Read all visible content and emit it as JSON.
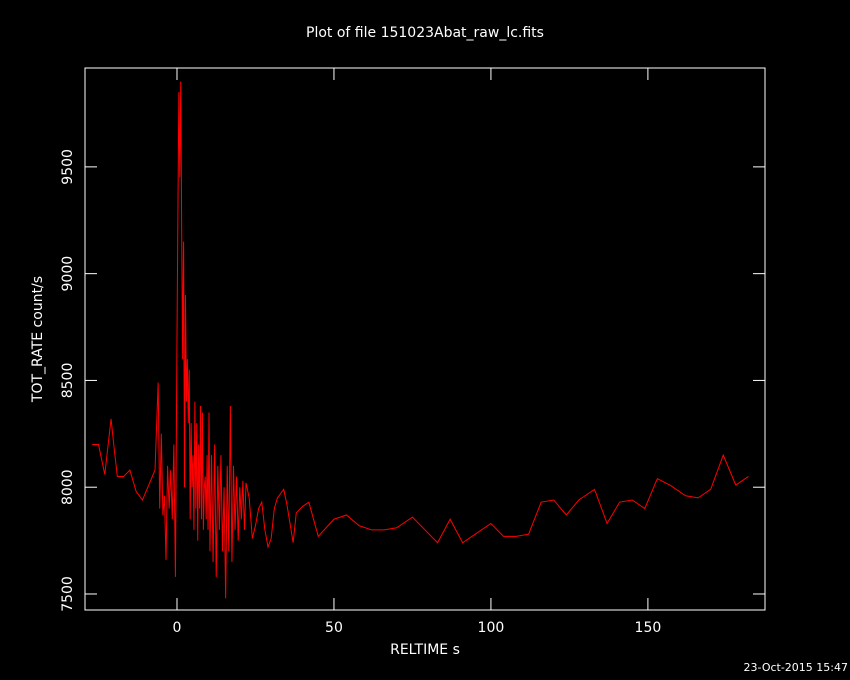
{
  "chart_data": {
    "type": "line",
    "title": "Plot of file 151023Abat_raw_lc.fits",
    "xlabel": "RELTIME  s",
    "ylabel": "TOT_RATE  count/s",
    "timestamp": "23-Oct-2015 15:47",
    "xlim": [
      -29.3,
      187.3
    ],
    "ylim": [
      7425,
      9963
    ],
    "xticks": [
      0,
      50,
      100,
      150
    ],
    "yticks": [
      7500,
      8000,
      8500,
      9000,
      9500
    ],
    "series": [
      {
        "color": "#ff0000",
        "x": [
          -27,
          -25,
          -23,
          -21,
          -20,
          -19,
          -17,
          -15,
          -13,
          -11,
          -9,
          -7,
          -6,
          -5.5,
          -5,
          -4.5,
          -4,
          -3.5,
          -3,
          -2.5,
          -2,
          -1.5,
          -1,
          -0.5,
          0,
          0.3,
          0.6,
          0.9,
          1.2,
          1.5,
          1.8,
          2.1,
          2.4,
          2.7,
          3,
          3.3,
          3.6,
          3.9,
          4.2,
          4.5,
          4.8,
          5.1,
          5.4,
          5.7,
          6,
          6.3,
          6.6,
          6.9,
          7.2,
          7.5,
          7.8,
          8.1,
          8.4,
          8.7,
          9,
          9.3,
          9.6,
          9.9,
          10.2,
          10.5,
          11,
          11.5,
          12,
          12.5,
          13,
          13.5,
          14,
          14.5,
          15,
          15.5,
          16,
          16.5,
          17,
          17.5,
          18,
          18.5,
          19,
          19.5,
          20,
          20.5,
          21,
          21.5,
          22,
          23,
          24,
          25,
          26,
          27,
          28,
          29,
          30,
          31,
          32,
          33,
          34,
          35,
          37,
          38,
          40,
          42,
          45,
          50,
          54,
          58,
          62,
          66,
          70,
          75,
          79,
          83,
          87,
          91,
          95,
          100,
          104,
          108,
          112,
          116,
          120,
          124,
          128,
          133,
          137,
          141,
          145,
          149,
          153,
          157,
          162,
          166,
          170,
          174,
          178,
          182
        ],
        "values": [
          8200,
          8200,
          8060,
          8320,
          8180,
          8050,
          8050,
          8080,
          7980,
          7940,
          8010,
          8080,
          8490,
          7900,
          8250,
          7870,
          7960,
          7660,
          8100,
          7900,
          8080,
          7850,
          8200,
          7580,
          8700,
          9300,
          9850,
          9450,
          9900,
          9200,
          8600,
          9150,
          8000,
          8900,
          8400,
          8600,
          8300,
          8550,
          7850,
          8300,
          8000,
          8150,
          7800,
          8400,
          7900,
          8300,
          7750,
          8200,
          7900,
          8380,
          7850,
          8350,
          7800,
          8000,
          8050,
          7850,
          8150,
          7800,
          8350,
          7700,
          8150,
          7650,
          8200,
          7580,
          8100,
          7800,
          8150,
          7700,
          8000,
          7480,
          8100,
          7700,
          8380,
          7650,
          8100,
          7800,
          8050,
          7750,
          8000,
          7850,
          8030,
          7800,
          8020,
          7950,
          7760,
          7820,
          7900,
          7930,
          7800,
          7720,
          7760,
          7900,
          7950,
          7970,
          7990,
          7920,
          7740,
          7880,
          7910,
          7930,
          7770,
          7850,
          7870,
          7820,
          7800,
          7800,
          7810,
          7860,
          7800,
          7740,
          7850,
          7740,
          7780,
          7830,
          7770,
          7770,
          7780,
          7930,
          7940,
          7870,
          7940,
          7990,
          7830,
          7930,
          7940,
          7900,
          8040,
          8010,
          7960,
          7950,
          7990,
          8150,
          8010,
          8050
        ]
      }
    ]
  }
}
